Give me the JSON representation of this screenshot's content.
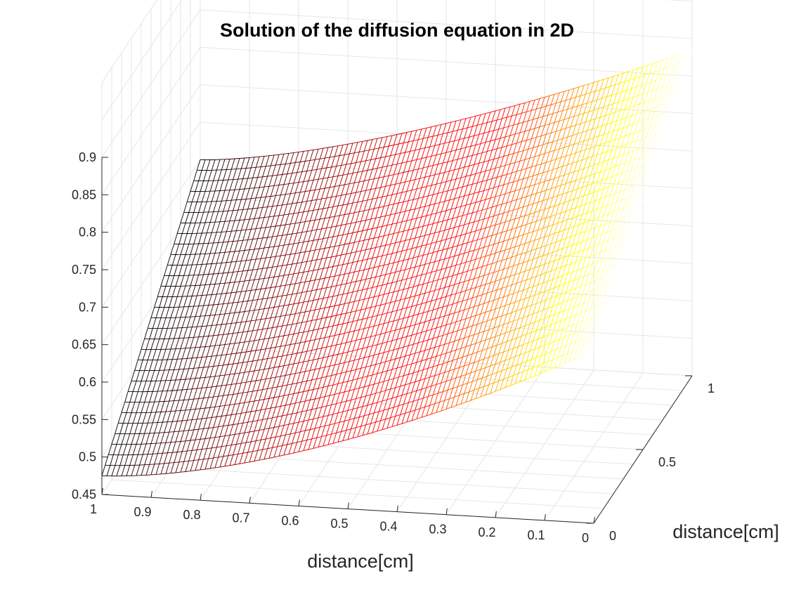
{
  "chart_data": {
    "type": "surface",
    "title": "Solution of the diffusion equation in 2D",
    "xlabel": "distance[cm]",
    "ylabel": "distance[cm]",
    "zlabel": "",
    "xlim": [
      0,
      1
    ],
    "ylim": [
      0,
      1
    ],
    "zlim": [
      0.45,
      0.9
    ],
    "x_ticks": [
      "0",
      "0.1",
      "0.2",
      "0.3",
      "0.4",
      "0.5",
      "0.6",
      "0.7",
      "0.8",
      "0.9",
      "1"
    ],
    "y_ticks": [
      "0",
      "0.5",
      "1"
    ],
    "z_ticks": [
      "0.45",
      "0.5",
      "0.55",
      "0.6",
      "0.65",
      "0.7",
      "0.75",
      "0.8",
      "0.85",
      "0.9"
    ],
    "grid": true,
    "colormap": [
      "#000000",
      "#ff0000",
      "#ffff00",
      "#ffffff"
    ],
    "surface_corners": {
      "x1_y0": 0.475,
      "x1_y1": 0.7,
      "x0_y0": 0.68,
      "x0_y1": 0.885
    }
  }
}
